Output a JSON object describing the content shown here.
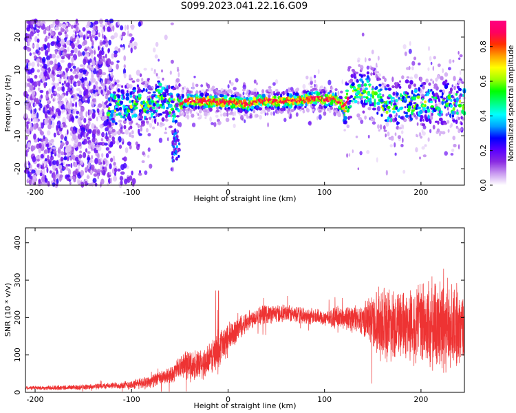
{
  "title": "S099.2023.041.22.16.G09",
  "chart_data": [
    {
      "type": "heatmap",
      "xlabel": "Height of straight line (km)",
      "ylabel": "Frequency (Hz)",
      "xlim": [
        -210,
        245
      ],
      "ylim": [
        -25,
        25
      ],
      "x_ticks": [
        -200,
        -100,
        0,
        100,
        200
      ],
      "y_ticks": [
        -20,
        -10,
        0,
        10,
        20
      ],
      "grid": false,
      "colorbar": {
        "label": "Normalized spectral amplitude",
        "range": [
          0,
          0.95
        ],
        "ticks": [
          0.0,
          0.2,
          0.4,
          0.6,
          0.8
        ],
        "tick_labels": [
          "0.0",
          "0.2",
          "0.4",
          "0.6",
          "0.8"
        ],
        "colormap": [
          "#ffffff",
          "#c99af0",
          "#8a2be2",
          "#5a00ff",
          "#0000ff",
          "#00a0ff",
          "#00ffff",
          "#00ff80",
          "#00ff00",
          "#a0ff00",
          "#ffff00",
          "#ffa000",
          "#ff3000",
          "#ff0060",
          "#ff0080"
        ]
      },
      "ridge": [
        {
          "x": -120,
          "y": -1.5
        },
        {
          "x": -100,
          "y": -1
        },
        {
          "x": -80,
          "y": 0
        },
        {
          "x": -70,
          "y": 2
        },
        {
          "x": -60,
          "y": -1
        },
        {
          "x": -50,
          "y": -1
        },
        {
          "x": -45,
          "y": 0.8
        },
        {
          "x": -30,
          "y": 0.6
        },
        {
          "x": -20,
          "y": 0.5
        },
        {
          "x": -10,
          "y": 0.3
        },
        {
          "x": 0,
          "y": 0.2
        },
        {
          "x": 10,
          "y": 0
        },
        {
          "x": 20,
          "y": -0.5
        },
        {
          "x": 30,
          "y": 0.6
        },
        {
          "x": 40,
          "y": 0.8
        },
        {
          "x": 50,
          "y": 0.5
        },
        {
          "x": 60,
          "y": 0.5
        },
        {
          "x": 70,
          "y": 0.8
        },
        {
          "x": 80,
          "y": 1
        },
        {
          "x": 90,
          "y": 1.5
        },
        {
          "x": 100,
          "y": 1
        },
        {
          "x": 110,
          "y": 1.2
        },
        {
          "x": 120,
          "y": -1
        },
        {
          "x": 130,
          "y": 3
        },
        {
          "x": 140,
          "y": 4
        },
        {
          "x": 150,
          "y": 3
        },
        {
          "x": 160,
          "y": 0
        },
        {
          "x": 170,
          "y": -2
        },
        {
          "x": 180,
          "y": 0
        },
        {
          "x": 200,
          "y": 0
        },
        {
          "x": 220,
          "y": 0
        },
        {
          "x": 245,
          "y": 0
        }
      ]
    },
    {
      "type": "line",
      "xlabel": "Height of straight line (km)",
      "ylabel": "SNR (10 * v/v)",
      "xlim": [
        -210,
        245
      ],
      "ylim": [
        0,
        440
      ],
      "x_ticks": [
        -200,
        -100,
        0,
        100,
        200
      ],
      "y_ticks": [
        0,
        100,
        200,
        300,
        400
      ],
      "grid": false,
      "series": [
        {
          "color": "#ee3333",
          "trend": [
            {
              "x": -210,
              "y": 12
            },
            {
              "x": -180,
              "y": 12
            },
            {
              "x": -150,
              "y": 14
            },
            {
              "x": -120,
              "y": 18
            },
            {
              "x": -100,
              "y": 20
            },
            {
              "x": -80,
              "y": 30
            },
            {
              "x": -60,
              "y": 45
            },
            {
              "x": -45,
              "y": 75
            },
            {
              "x": -30,
              "y": 70
            },
            {
              "x": -20,
              "y": 85
            },
            {
              "x": -10,
              "y": 115
            },
            {
              "x": 0,
              "y": 140
            },
            {
              "x": 10,
              "y": 170
            },
            {
              "x": 20,
              "y": 190
            },
            {
              "x": 30,
              "y": 205
            },
            {
              "x": 40,
              "y": 210
            },
            {
              "x": 60,
              "y": 210
            },
            {
              "x": 80,
              "y": 205
            },
            {
              "x": 100,
              "y": 200
            },
            {
              "x": 120,
              "y": 200
            },
            {
              "x": 140,
              "y": 195
            },
            {
              "x": 160,
              "y": 190
            },
            {
              "x": 180,
              "y": 180
            },
            {
              "x": 200,
              "y": 180
            },
            {
              "x": 220,
              "y": 175
            },
            {
              "x": 245,
              "y": 175
            }
          ],
          "noise": [
            {
              "x": -210,
              "y": 5
            },
            {
              "x": -120,
              "y": 8
            },
            {
              "x": -60,
              "y": 20
            },
            {
              "x": -40,
              "y": 40
            },
            {
              "x": -20,
              "y": 40
            },
            {
              "x": -10,
              "y": 50
            },
            {
              "x": 20,
              "y": 25
            },
            {
              "x": 100,
              "y": 20
            },
            {
              "x": 140,
              "y": 40
            },
            {
              "x": 150,
              "y": 70
            },
            {
              "x": 160,
              "y": 100
            },
            {
              "x": 180,
              "y": 80
            },
            {
              "x": 200,
              "y": 110
            },
            {
              "x": 220,
              "y": 120
            },
            {
              "x": 245,
              "y": 90
            }
          ]
        }
      ]
    }
  ]
}
